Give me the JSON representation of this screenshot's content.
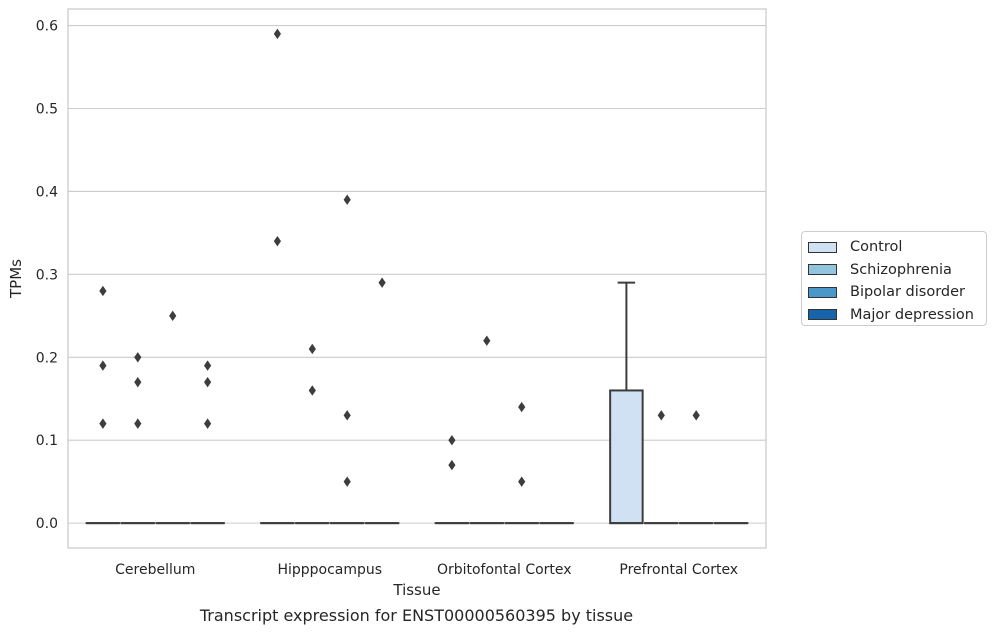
{
  "chart_data": {
    "type": "box",
    "title": "",
    "caption": "Transcript expression for ENST00000560395 by tissue",
    "xlabel": "Tissue",
    "ylabel": "TPMs",
    "ylim": [
      -0.03,
      0.62
    ],
    "yticks": [
      0.0,
      0.1,
      0.2,
      0.3,
      0.4,
      0.5,
      0.6
    ],
    "ytick_labels": [
      "0.0",
      "0.1",
      "0.2",
      "0.3",
      "0.4",
      "0.5",
      "0.6"
    ],
    "grid": "horizontal",
    "legend_position": "right",
    "categories": [
      "Cerebellum",
      "Hipppocampus",
      "Orbitofontal Cortex",
      "Prefrontal Cortex"
    ],
    "series": [
      {
        "name": "Control",
        "color": "#cfe1f2",
        "boxes": [
          {
            "category": "Cerebellum",
            "q1": 0,
            "median": 0,
            "q3": 0,
            "whisker_low": 0,
            "whisker_high": 0,
            "outliers": [
              0.28,
              0.19,
              0.12
            ]
          },
          {
            "category": "Hipppocampus",
            "q1": 0,
            "median": 0,
            "q3": 0,
            "whisker_low": 0,
            "whisker_high": 0,
            "outliers": [
              0.59,
              0.34
            ]
          },
          {
            "category": "Orbitofontal Cortex",
            "q1": 0,
            "median": 0,
            "q3": 0,
            "whisker_low": 0,
            "whisker_high": 0,
            "outliers": [
              0.1,
              0.07
            ]
          },
          {
            "category": "Prefrontal Cortex",
            "q1": 0,
            "median": 0,
            "q3": 0.16,
            "whisker_low": 0,
            "whisker_high": 0.29,
            "outliers": []
          }
        ]
      },
      {
        "name": "Schizophrenia",
        "color": "#93c4de",
        "boxes": [
          {
            "category": "Cerebellum",
            "q1": 0,
            "median": 0,
            "q3": 0,
            "whisker_low": 0,
            "whisker_high": 0,
            "outliers": [
              0.2,
              0.17,
              0.12
            ]
          },
          {
            "category": "Hipppocampus",
            "q1": 0,
            "median": 0,
            "q3": 0,
            "whisker_low": 0,
            "whisker_high": 0,
            "outliers": [
              0.21,
              0.16
            ]
          },
          {
            "category": "Orbitofontal Cortex",
            "q1": 0,
            "median": 0,
            "q3": 0,
            "whisker_low": 0,
            "whisker_high": 0,
            "outliers": [
              0.22
            ]
          },
          {
            "category": "Prefrontal Cortex",
            "q1": 0,
            "median": 0,
            "q3": 0,
            "whisker_low": 0,
            "whisker_high": 0,
            "outliers": [
              0.13
            ]
          }
        ]
      },
      {
        "name": "Bipolar disorder",
        "color": "#4a98c9",
        "boxes": [
          {
            "category": "Cerebellum",
            "q1": 0,
            "median": 0,
            "q3": 0,
            "whisker_low": 0,
            "whisker_high": 0,
            "outliers": [
              0.25
            ]
          },
          {
            "category": "Hipppocampus",
            "q1": 0,
            "median": 0,
            "q3": 0,
            "whisker_low": 0,
            "whisker_high": 0,
            "outliers": [
              0.39,
              0.13,
              0.05
            ]
          },
          {
            "category": "Orbitofontal Cortex",
            "q1": 0,
            "median": 0,
            "q3": 0,
            "whisker_low": 0,
            "whisker_high": 0,
            "outliers": [
              0.14,
              0.05
            ]
          },
          {
            "category": "Prefrontal Cortex",
            "q1": 0,
            "median": 0,
            "q3": 0,
            "whisker_low": 0,
            "whisker_high": 0,
            "outliers": [
              0.13
            ]
          }
        ]
      },
      {
        "name": "Major depression",
        "color": "#1764ab",
        "boxes": [
          {
            "category": "Cerebellum",
            "q1": 0,
            "median": 0,
            "q3": 0,
            "whisker_low": 0,
            "whisker_high": 0,
            "outliers": [
              0.19,
              0.17,
              0.12
            ]
          },
          {
            "category": "Hipppocampus",
            "q1": 0,
            "median": 0,
            "q3": 0,
            "whisker_low": 0,
            "whisker_high": 0,
            "outliers": [
              0.29
            ]
          },
          {
            "category": "Orbitofontal Cortex",
            "q1": 0,
            "median": 0,
            "q3": 0,
            "whisker_low": 0,
            "whisker_high": 0,
            "outliers": []
          },
          {
            "category": "Prefrontal Cortex",
            "q1": 0,
            "median": 0,
            "q3": 0,
            "whisker_low": 0,
            "whisker_high": 0,
            "outliers": []
          }
        ]
      }
    ]
  }
}
